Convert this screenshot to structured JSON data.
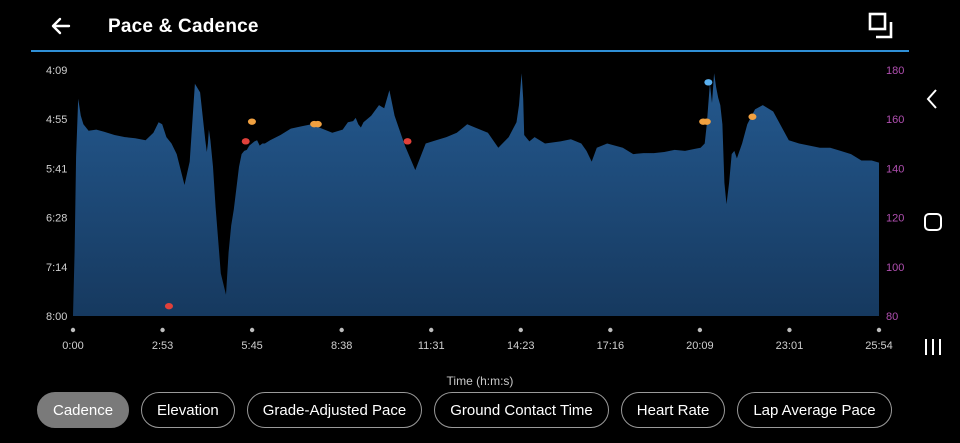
{
  "header": {
    "title": "Pace & Cadence",
    "back_icon": "arrow-left-icon",
    "expand_icon": "fullscreen-icon"
  },
  "colors": {
    "area": "#1d4a7a",
    "rule": "#2f8fd6",
    "right_axis": "#b04fb0",
    "dot_red": "#e0403a",
    "dot_orange": "#f0a040",
    "dot_blue": "#5ab0f0"
  },
  "chart_data": {
    "type": "area",
    "xlabel": "Time (h:m:s)",
    "x_ticks": [
      "0:00",
      "2:53",
      "5:45",
      "8:38",
      "11:31",
      "14:23",
      "17:16",
      "20:09",
      "23:01",
      "25:54"
    ],
    "x_range_seconds": [
      0,
      1554
    ],
    "left_axis": {
      "label": "",
      "ticks": [
        "4:09",
        "4:55",
        "5:41",
        "6:28",
        "7:14",
        "8:00"
      ],
      "range_seconds_per_km": [
        249,
        480
      ],
      "inverted": true
    },
    "right_axis": {
      "label": "",
      "ticks": [
        "180",
        "160",
        "140",
        "120",
        "100",
        "80"
      ],
      "range": [
        80,
        180
      ]
    },
    "pace_series": {
      "x_seconds": [
        0,
        3,
        6,
        10,
        15,
        20,
        30,
        45,
        60,
        80,
        100,
        120,
        140,
        155,
        165,
        172,
        180,
        190,
        200,
        215,
        225,
        235,
        245,
        255,
        258,
        260,
        262,
        265,
        270,
        275,
        285,
        295,
        300,
        305,
        310,
        315,
        320,
        325,
        330,
        335,
        340,
        345,
        350,
        355,
        360,
        365,
        370,
        380,
        400,
        420,
        440,
        460,
        480,
        500,
        520,
        530,
        540,
        545,
        550,
        555,
        560,
        575,
        590,
        600,
        610,
        620,
        640,
        660,
        680,
        700,
        720,
        740,
        760,
        800,
        820,
        840,
        855,
        860,
        865,
        868,
        870,
        875,
        880,
        890,
        910,
        940,
        960,
        980,
        990,
        995,
        1000,
        1010,
        1030,
        1060,
        1080,
        1100,
        1120,
        1140,
        1160,
        1180,
        1200,
        1210,
        1218,
        1222,
        1225,
        1228,
        1232,
        1236,
        1240,
        1244,
        1248,
        1252,
        1256,
        1260,
        1265,
        1270,
        1275,
        1280,
        1290,
        1300,
        1315,
        1330,
        1350,
        1380,
        1400,
        1420,
        1440,
        1460,
        1480,
        1500,
        1520,
        1540,
        1554
      ],
      "pace_seconds": [
        480,
        420,
        330,
        276,
        292,
        300,
        306,
        305,
        307,
        310,
        312,
        313,
        315,
        308,
        298,
        300,
        312,
        318,
        328,
        357,
        335,
        262,
        270,
        315,
        326,
        318,
        305,
        315,
        340,
        378,
        440,
        460,
        420,
        395,
        380,
        360,
        340,
        328,
        325,
        324,
        320,
        318,
        316,
        315,
        320,
        318,
        318,
        315,
        310,
        304,
        302,
        300,
        304,
        308,
        305,
        298,
        297,
        294,
        300,
        303,
        298,
        292,
        282,
        285,
        268,
        292,
        320,
        343,
        318,
        315,
        312,
        308,
        300,
        308,
        322,
        312,
        298,
        282,
        252,
        276,
        310,
        313,
        316,
        312,
        318,
        316,
        314,
        318,
        325,
        330,
        335,
        322,
        318,
        322,
        328,
        327,
        327,
        326,
        324,
        325,
        323,
        322,
        318,
        300,
        280,
        262,
        280,
        252,
        265,
        275,
        282,
        300,
        355,
        375,
        355,
        328,
        325,
        332,
        318,
        300,
        286,
        282,
        288,
        315,
        318,
        320,
        322,
        322,
        325,
        328,
        334,
        334,
        336
      ]
    },
    "cadence_points": [
      {
        "x_seconds": 185,
        "cadence": 84,
        "color": "red"
      },
      {
        "x_seconds": 333,
        "cadence": 151,
        "color": "red"
      },
      {
        "x_seconds": 645,
        "cadence": 151,
        "color": "red"
      },
      {
        "x_seconds": 345,
        "cadence": 159,
        "color": "orange"
      },
      {
        "x_seconds": 465,
        "cadence": 158,
        "color": "orange"
      },
      {
        "x_seconds": 472,
        "cadence": 158,
        "color": "orange"
      },
      {
        "x_seconds": 1215,
        "cadence": 159,
        "color": "orange"
      },
      {
        "x_seconds": 1222,
        "cadence": 159,
        "color": "orange"
      },
      {
        "x_seconds": 1310,
        "cadence": 161,
        "color": "orange"
      },
      {
        "x_seconds": 1225,
        "cadence": 175,
        "color": "blue"
      }
    ]
  },
  "chips": [
    {
      "label": "Cadence",
      "active": true
    },
    {
      "label": "Elevation",
      "active": false
    },
    {
      "label": "Grade-Adjusted Pace",
      "active": false
    },
    {
      "label": "Ground Contact Time",
      "active": false
    },
    {
      "label": "Heart Rate",
      "active": false
    },
    {
      "label": "Lap Average Pace",
      "active": false
    }
  ],
  "system_nav": {
    "back_icon": "chevron-left-icon",
    "home_icon": "home-square-icon",
    "recents_icon": "recents-icon"
  }
}
